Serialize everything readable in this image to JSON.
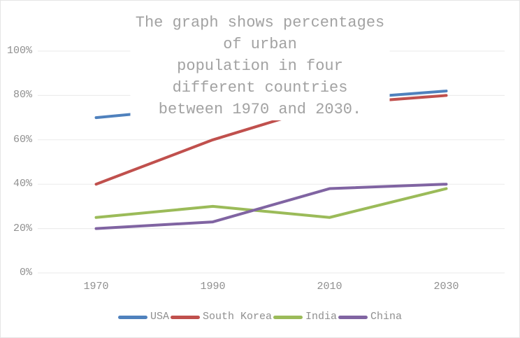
{
  "chart": {
    "title_display": "The graph shows percentages of urban\npopulation in four different countries\nbetween 1970 and 2030."
  },
  "chart_data": {
    "type": "line",
    "title": "The graph shows percentages of urban population in four different countries between 1970 and 2030.",
    "categories": [
      "1970",
      "1990",
      "2010",
      "2030"
    ],
    "series": [
      {
        "name": "USA",
        "color": "#4F81BD",
        "values": [
          70,
          75,
          78,
          82
        ]
      },
      {
        "name": "South Korea",
        "color": "#C0504D",
        "values": [
          40,
          60,
          76,
          80
        ]
      },
      {
        "name": "India",
        "color": "#9BBB59",
        "values": [
          25,
          30,
          25,
          38
        ]
      },
      {
        "name": "China",
        "color": "#8064A2",
        "values": [
          20,
          23,
          38,
          40
        ]
      }
    ],
    "xlabel": "",
    "ylabel": "",
    "ylim": [
      0,
      100
    ],
    "yticks": [
      0,
      20,
      40,
      60,
      80,
      100
    ],
    "ytick_suffix": "%",
    "grid": true,
    "legend_position": "bottom",
    "colors": {
      "grid": "#eaeaea",
      "title_text": "#a2a2a2",
      "tick_text": "#8f8f8f",
      "legend_text": "#8f8f8f",
      "background": "#ffffff",
      "border": "#e5e5e5"
    }
  }
}
